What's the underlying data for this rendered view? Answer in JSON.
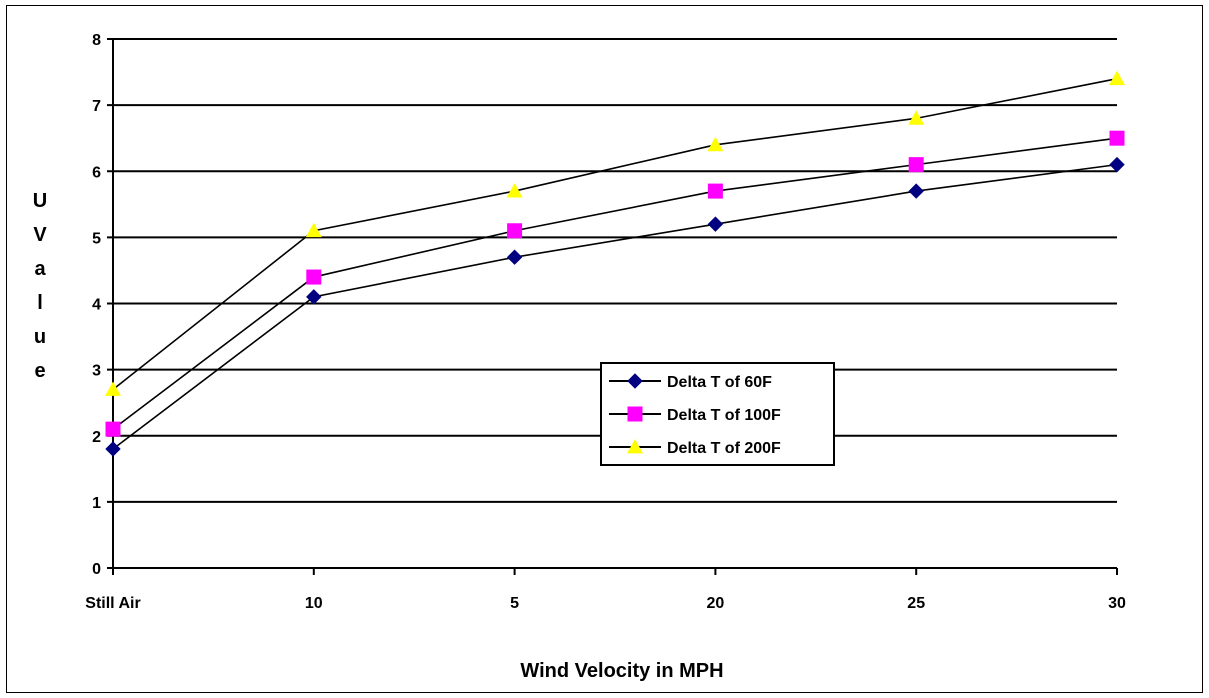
{
  "chart_data": {
    "type": "line",
    "categories": [
      "Still Air",
      "10",
      "5",
      "20",
      "25",
      "30"
    ],
    "series": [
      {
        "name": "Delta T of 60F",
        "values": [
          1.8,
          4.1,
          4.7,
          5.2,
          5.7,
          6.1
        ],
        "color": "#000080",
        "marker": "diamond"
      },
      {
        "name": "Delta T of 100F",
        "values": [
          2.1,
          4.4,
          5.1,
          5.7,
          6.1,
          6.5
        ],
        "color": "#FF00FF",
        "marker": "square"
      },
      {
        "name": "Delta T of 200F",
        "values": [
          2.7,
          5.1,
          5.7,
          6.4,
          6.8,
          7.4
        ],
        "color": "#FFFF00",
        "marker": "triangle"
      }
    ],
    "xlabel": "Wind Velocity in MPH",
    "ylabel": [
      "U",
      "V",
      "a",
      "l",
      "u",
      "e"
    ],
    "ylim": [
      0,
      8
    ],
    "yticks": [
      "0",
      "1",
      "2",
      "3",
      "4",
      "5",
      "6",
      "7",
      "8"
    ],
    "grid": true,
    "legend_position": "center-right",
    "line_color": "#000000"
  }
}
